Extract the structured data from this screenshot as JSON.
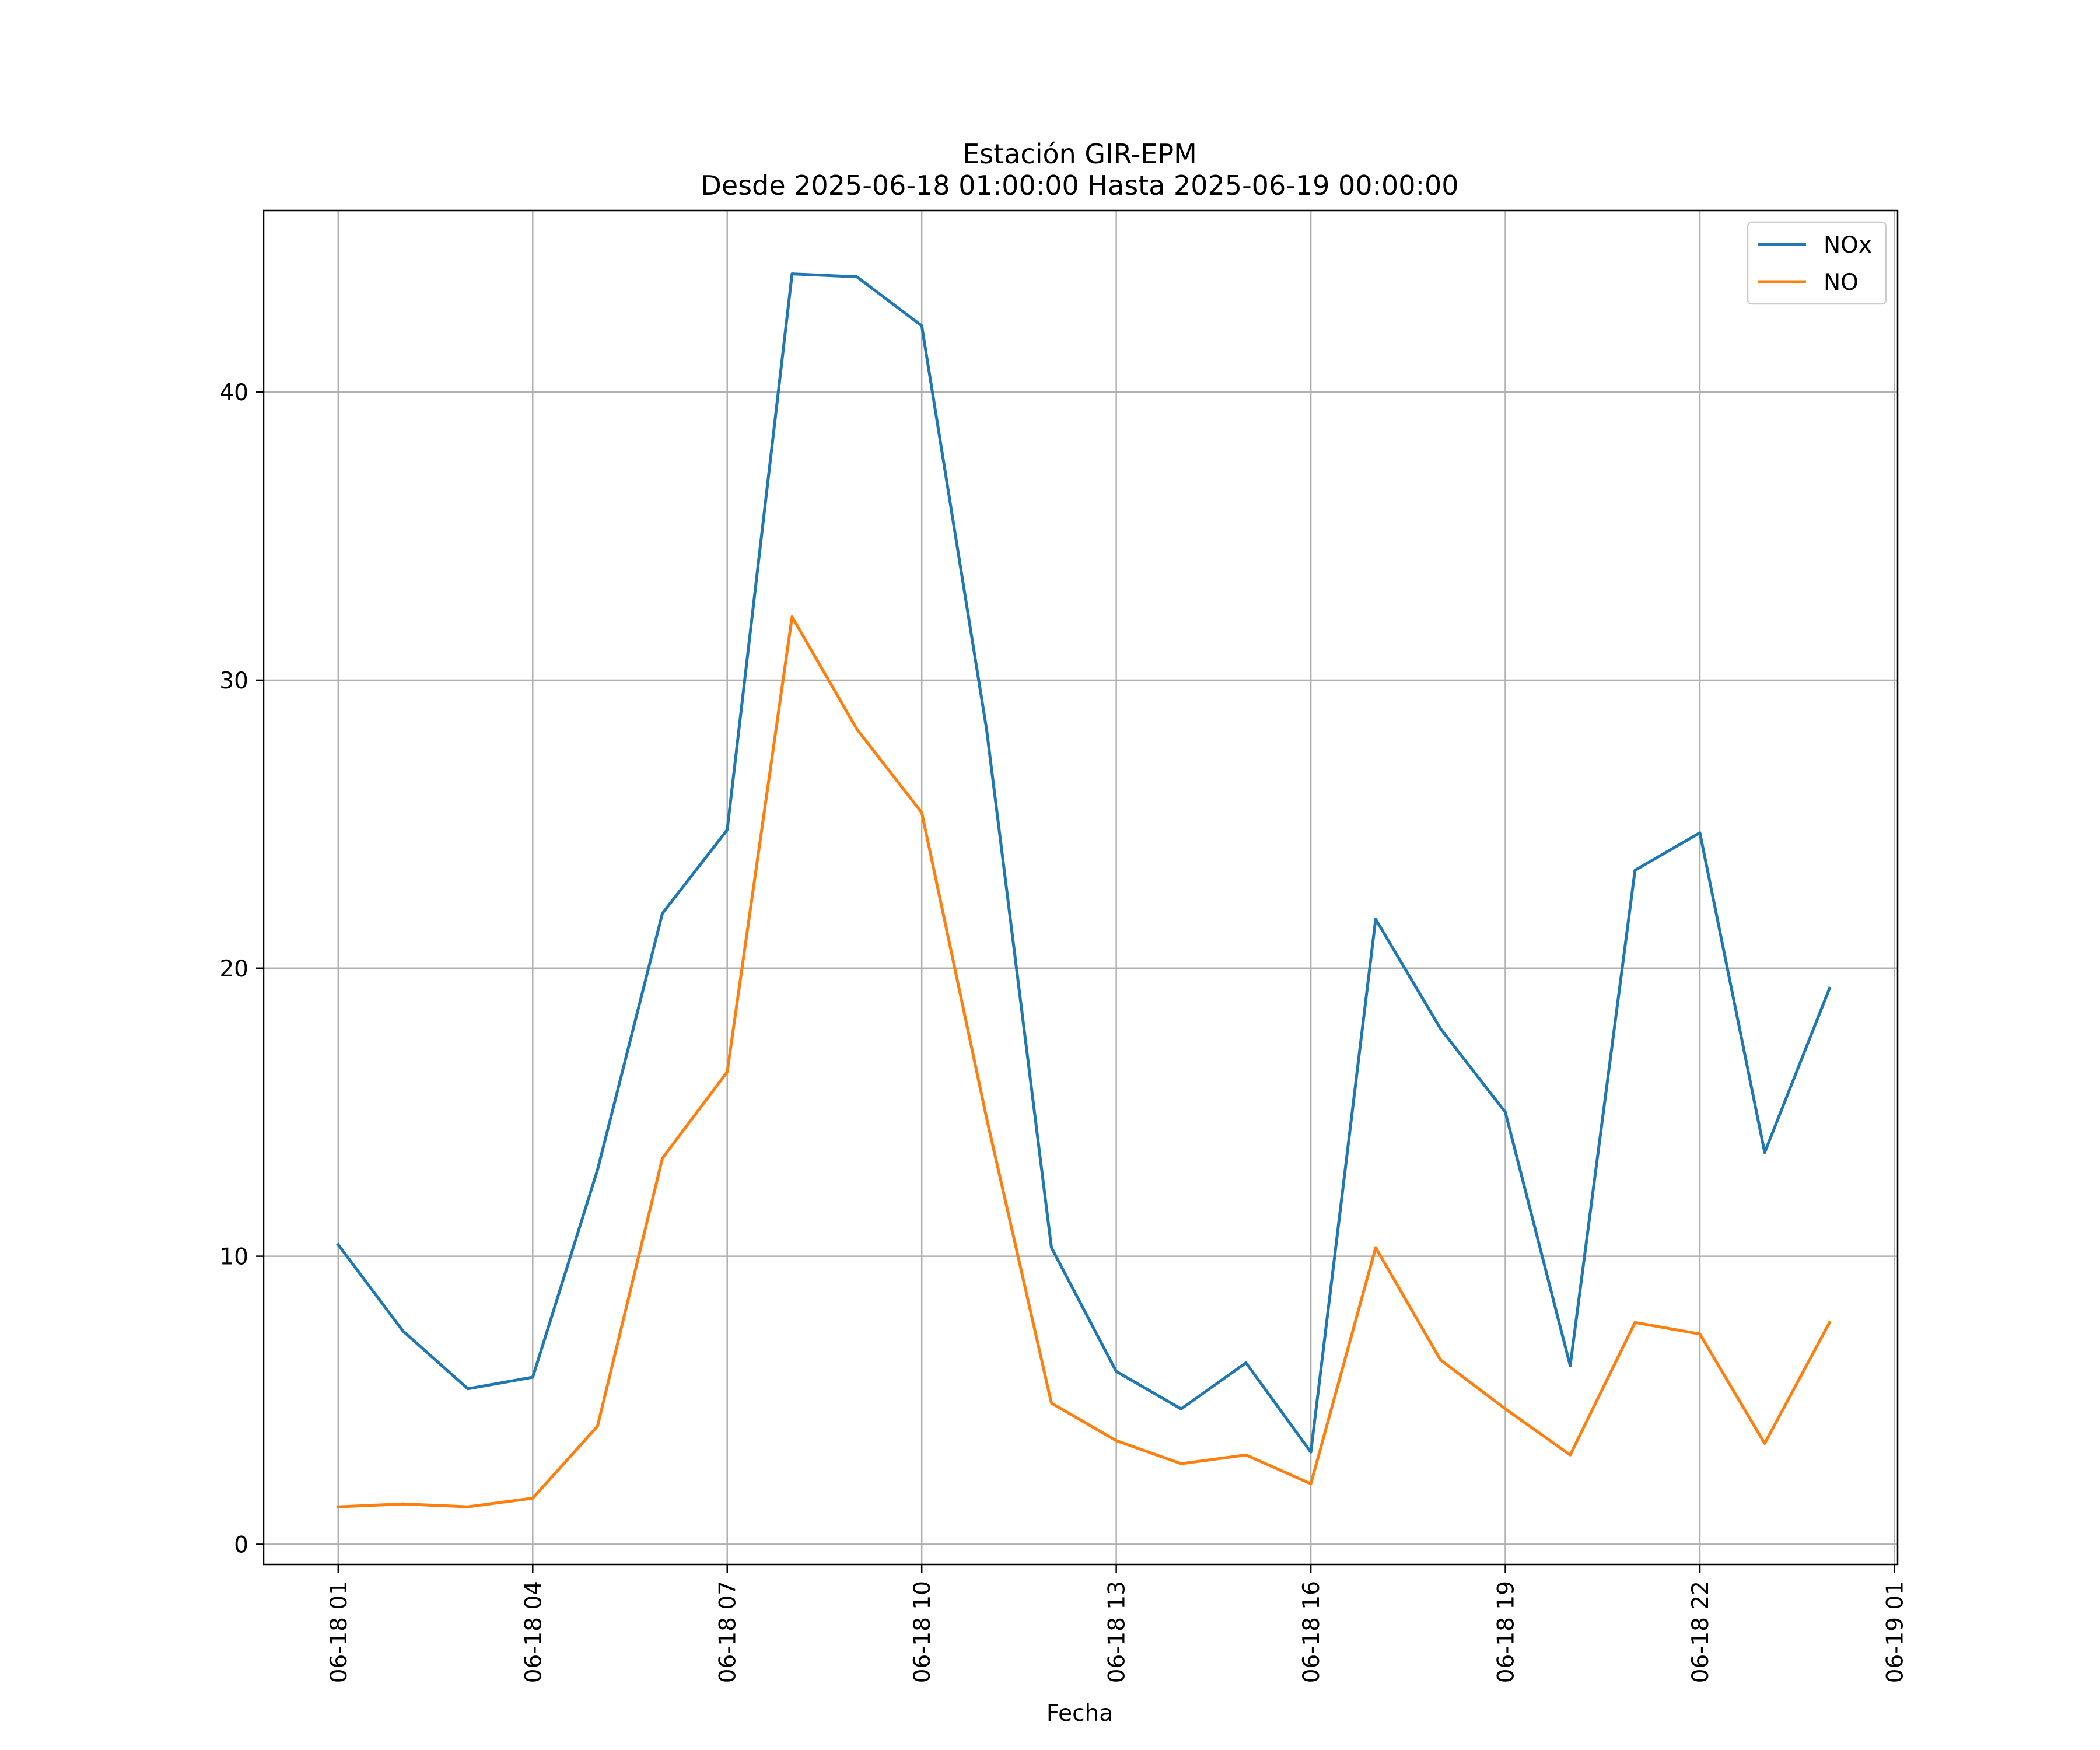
{
  "chart_data": {
    "type": "line",
    "title": "Estación GIR-EPM",
    "subtitle": "Desde 2025-06-18 01:00:00 Hasta 2025-06-19 00:00:00",
    "xlabel": "Fecha",
    "ylabel": "",
    "x": [
      "06-18 01",
      "06-18 02",
      "06-18 03",
      "06-18 04",
      "06-18 05",
      "06-18 06",
      "06-18 07",
      "06-18 08",
      "06-18 09",
      "06-18 10",
      "06-18 11",
      "06-18 12",
      "06-18 13",
      "06-18 14",
      "06-18 15",
      "06-18 16",
      "06-18 17",
      "06-18 18",
      "06-18 19",
      "06-18 20",
      "06-18 21",
      "06-18 22",
      "06-18 23",
      "06-19 00"
    ],
    "x_ticks": [
      "06-18 01",
      "06-18 04",
      "06-18 07",
      "06-18 10",
      "06-18 13",
      "06-18 16",
      "06-18 19",
      "06-18 22",
      "06-19 01"
    ],
    "y_ticks": [
      0,
      10,
      20,
      30,
      40
    ],
    "ylim": [
      -0.7,
      46.3
    ],
    "xlim_hours": [
      -1.15,
      24.05
    ],
    "grid": true,
    "legend_position": "top-right",
    "series": [
      {
        "name": "NOx",
        "color": "#1f77b4",
        "values": [
          10.4,
          7.4,
          5.4,
          5.8,
          13.0,
          21.9,
          24.8,
          44.1,
          44.0,
          42.3,
          28.3,
          10.3,
          6.0,
          4.7,
          6.3,
          3.2,
          21.7,
          17.9,
          15.0,
          6.2,
          23.4,
          24.7,
          13.6,
          19.3
        ]
      },
      {
        "name": "NO",
        "color": "#ff7f0e",
        "values": [
          1.3,
          1.4,
          1.3,
          1.6,
          4.1,
          13.4,
          16.4,
          32.2,
          28.3,
          25.4,
          14.8,
          4.9,
          3.6,
          2.8,
          3.1,
          2.1,
          10.3,
          6.4,
          4.7,
          3.1,
          7.7,
          7.3,
          3.5,
          7.7
        ]
      }
    ]
  }
}
